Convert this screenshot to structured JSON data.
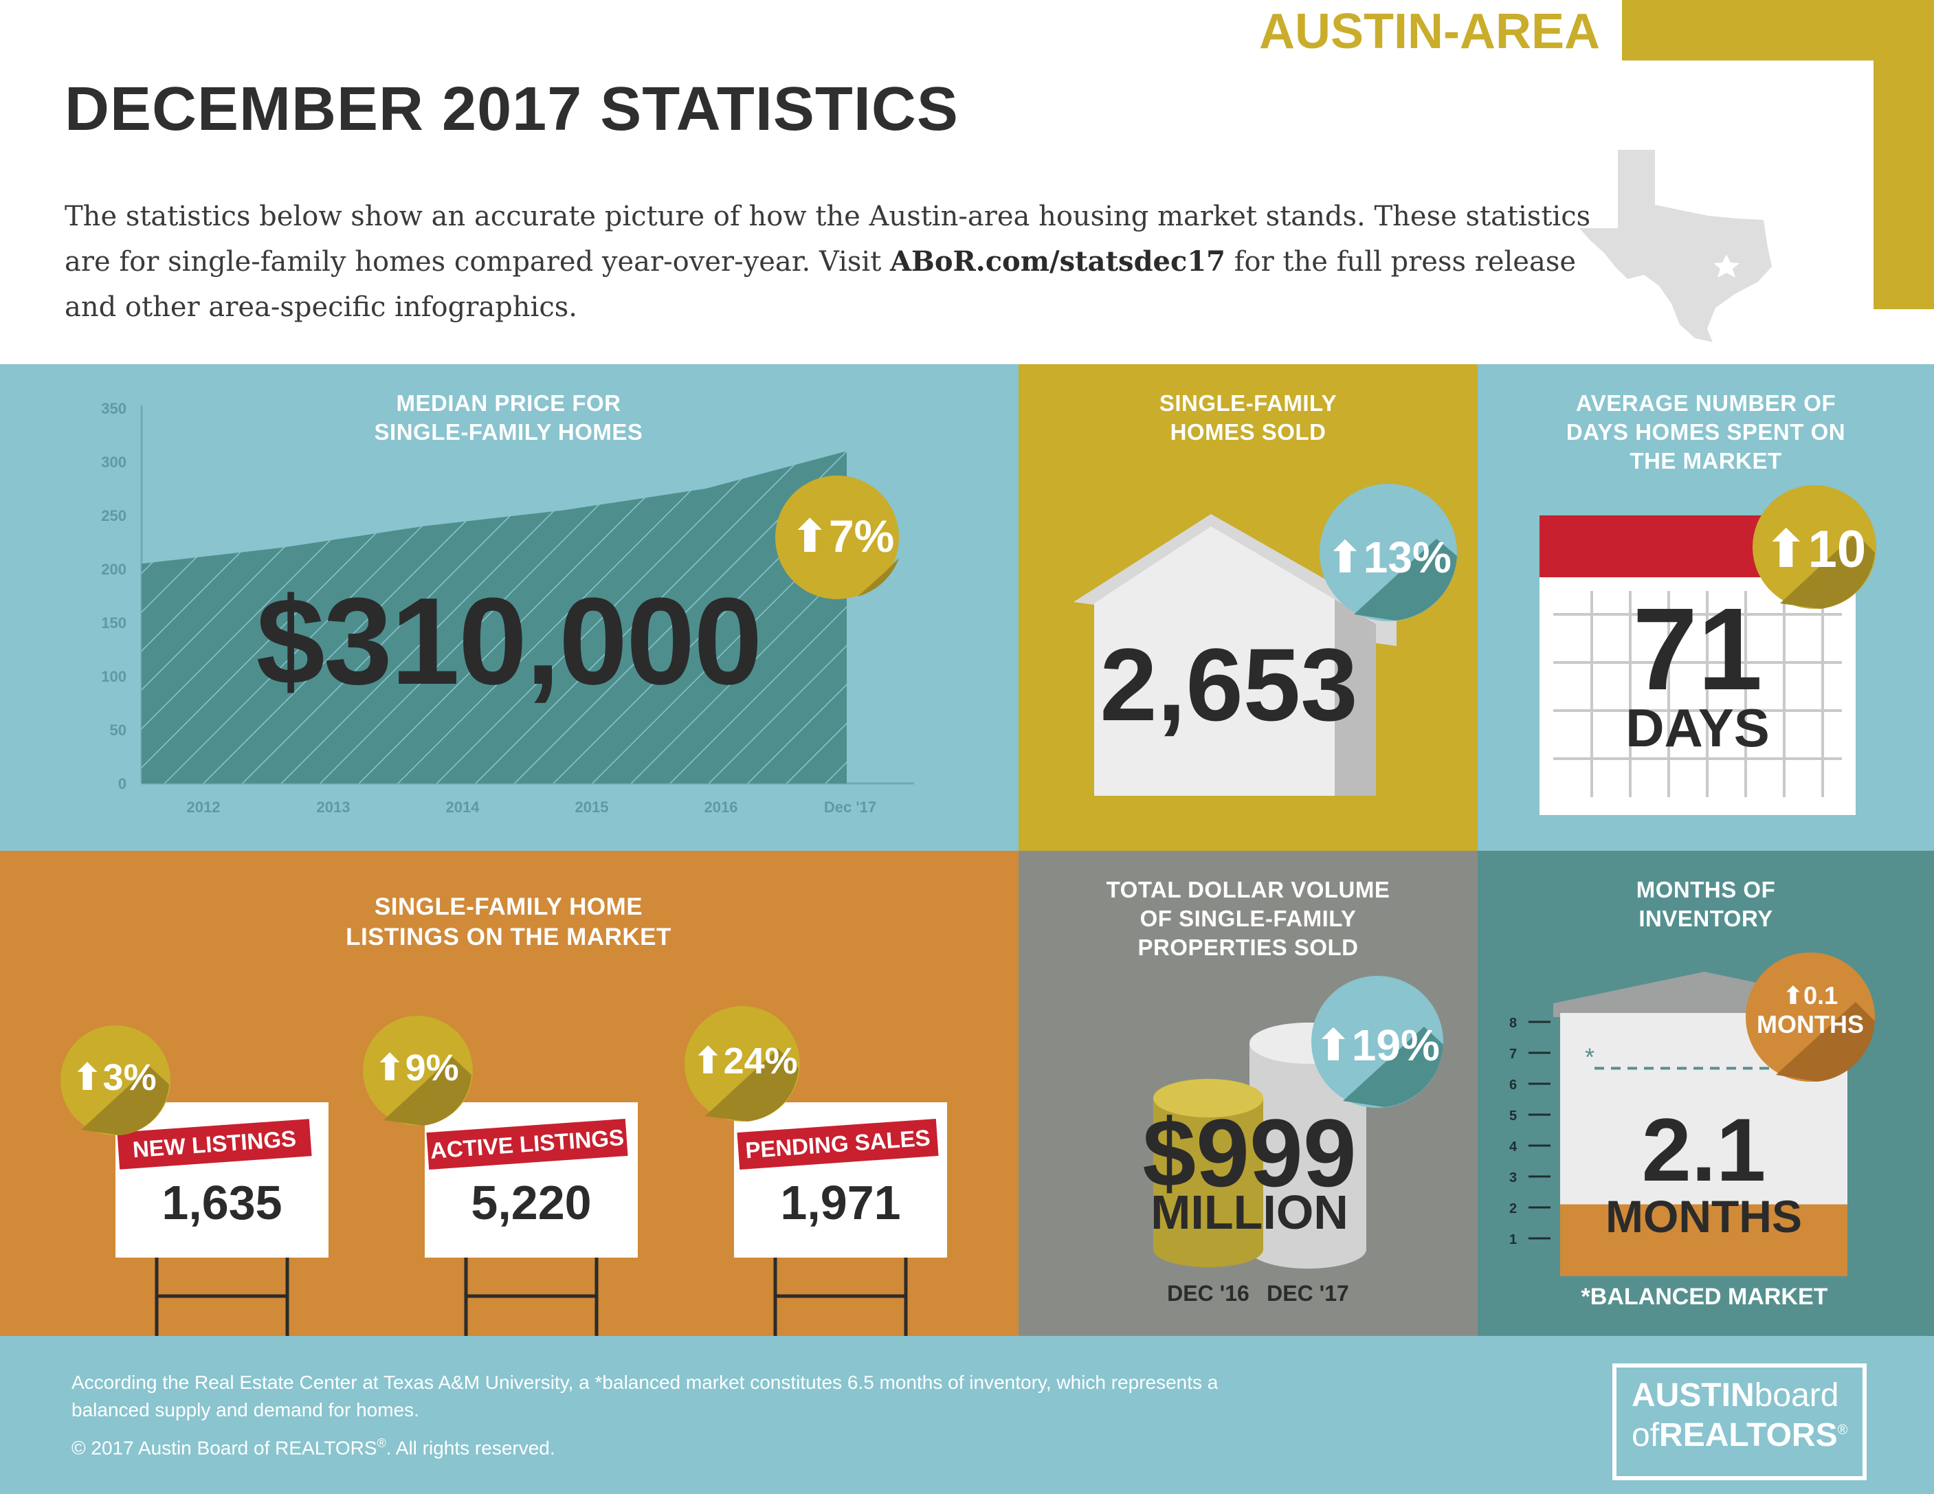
{
  "header": {
    "region_tag": "AUSTIN-AREA",
    "title": "DECEMBER 2017 STATISTICS",
    "intro_part1": "The statistics below show an accurate picture of how the Austin-area housing market stands. These statistics are for single-family homes compared year-over-year. Visit ",
    "intro_link": "ABoR.com/statsdec17",
    "intro_part2": " for the full press release and other area-specific infographics."
  },
  "colors": {
    "teal": "#89c4cf",
    "gold": "#c9ad2b",
    "orange": "#d08a38",
    "gray": "#898c86",
    "dark_teal": "#55908f",
    "red": "#c8202f",
    "chart_fill": "#4e8f8e"
  },
  "median_price": {
    "title_line1": "MEDIAN PRICE FOR",
    "title_line2": "SINGLE-FAMILY HOMES",
    "value": "$310,000",
    "change": "7%",
    "change_icon": "arrow-up-icon"
  },
  "chart_data": {
    "type": "area",
    "title": "MEDIAN PRICE FOR SINGLE-FAMILY HOMES",
    "categories": [
      "2012",
      "2013",
      "2014",
      "2015",
      "2016",
      "Dec '17"
    ],
    "values": [
      205,
      220,
      240,
      255,
      275,
      310
    ],
    "yticks": [
      0,
      50,
      100,
      150,
      200,
      250,
      300,
      350
    ],
    "ylim": [
      0,
      350
    ],
    "grid": false
  },
  "homes_sold": {
    "title_line1": "SINGLE-FAMILY",
    "title_line2": "HOMES SOLD",
    "value": "2,653",
    "change": "13%",
    "icon": "house-icon"
  },
  "days_on_market": {
    "title_line1": "AVERAGE NUMBER OF",
    "title_line2": "DAYS HOMES SPENT ON",
    "title_line3": "THE MARKET",
    "value": "71",
    "unit": "DAYS",
    "change": "10",
    "icon": "calendar-icon"
  },
  "listings": {
    "title_line1": "SINGLE-FAMILY HOME",
    "title_line2": "LISTINGS ON THE MARKET",
    "items": [
      {
        "label": "NEW LISTINGS",
        "value": "1,635",
        "change": "3%"
      },
      {
        "label": "ACTIVE LISTINGS",
        "value": "5,220",
        "change": "9%"
      },
      {
        "label": "PENDING SALES",
        "value": "1,971",
        "change": "24%"
      }
    ]
  },
  "dollar_volume": {
    "title_line1": "TOTAL DOLLAR VOLUME",
    "title_line2": "OF SINGLE-FAMILY",
    "title_line3": "PROPERTIES SOLD",
    "value": "$999",
    "unit": "MILLION",
    "change": "19%",
    "label_left": "DEC '16",
    "label_right": "DEC '17",
    "icon": "coin-stack-icon"
  },
  "inventory": {
    "title_line1": "MONTHS OF",
    "title_line2": "INVENTORY",
    "value": "2.1",
    "unit": "MONTHS",
    "change_line1": "0.1",
    "change_line2": "MONTHS",
    "scale": [
      "8",
      "7",
      "6",
      "5",
      "4",
      "3",
      "2",
      "1"
    ],
    "level_months": 2.1,
    "balanced_months": 6.5,
    "asterisk": "*",
    "footnote": "*BALANCED MARKET"
  },
  "footer": {
    "note_line1": "According the Real Estate Center at Texas A&M University, a *balanced market constitutes 6.5 months of inventory, which represents a",
    "note_line2": "balanced supply and demand for homes.",
    "copyright_a": "© 2017  Austin Board of REALTORS",
    "copyright_sup": "®",
    "copyright_b": ". All rights reserved.",
    "logo_line1_a": "AUSTIN",
    "logo_line1_b": "board",
    "logo_line2_a": "of",
    "logo_line2_b": "REALTORS",
    "logo_reg": "®"
  }
}
